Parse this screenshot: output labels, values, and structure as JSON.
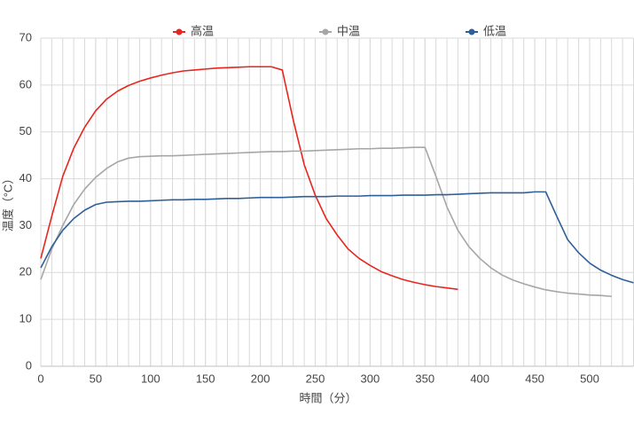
{
  "chart_data": {
    "type": "line",
    "x_label": "時間（分）",
    "y_label": "温度（°C）",
    "x": [
      0,
      10,
      20,
      30,
      40,
      50,
      60,
      70,
      80,
      90,
      100,
      110,
      120,
      130,
      140,
      150,
      160,
      170,
      180,
      190,
      200,
      210,
      220,
      230,
      240,
      250,
      260,
      270,
      280,
      290,
      300,
      310,
      320,
      330,
      340,
      350,
      360,
      370,
      380,
      390,
      400,
      410,
      420,
      430,
      440,
      450,
      460,
      470,
      480,
      490,
      500,
      510,
      520,
      530,
      540
    ],
    "series": [
      {
        "name": "高温",
        "color": "#e8261f",
        "values": [
          23,
          32,
          40.5,
          46.5,
          51,
          54.5,
          57,
          58.7,
          59.9,
          60.8,
          61.5,
          62.1,
          62.6,
          63,
          63.2,
          63.4,
          63.6,
          63.7,
          63.8,
          63.9,
          63.9,
          63.9,
          63.2,
          52.5,
          43,
          36.5,
          31.5,
          28,
          25,
          23,
          21.5,
          20.2,
          19.3,
          18.5,
          17.9,
          17.4,
          17,
          16.7,
          16.4,
          null,
          null,
          null,
          null,
          null,
          null,
          null,
          null,
          null,
          null,
          null,
          null,
          null,
          null,
          null,
          null
        ]
      },
      {
        "name": "中温",
        "color": "#a6a6a6",
        "values": [
          18.5,
          25,
          30,
          34.5,
          37.8,
          40.3,
          42.2,
          43.6,
          44.4,
          44.7,
          44.8,
          44.9,
          44.9,
          45,
          45.1,
          45.2,
          45.3,
          45.4,
          45.5,
          45.6,
          45.7,
          45.8,
          45.8,
          45.9,
          45.9,
          46,
          46.1,
          46.2,
          46.3,
          46.4,
          46.4,
          46.5,
          46.5,
          46.6,
          46.7,
          46.7,
          40.5,
          34,
          29,
          25.5,
          23,
          21,
          19.5,
          18.4,
          17.6,
          16.9,
          16.3,
          15.9,
          15.6,
          15.4,
          15.2,
          15.1,
          14.9,
          null,
          null
        ]
      },
      {
        "name": "低温",
        "color": "#2f5f98",
        "values": [
          21,
          25.5,
          29,
          31.5,
          33.3,
          34.5,
          35,
          35.1,
          35.2,
          35.2,
          35.3,
          35.4,
          35.5,
          35.5,
          35.6,
          35.6,
          35.7,
          35.8,
          35.8,
          35.9,
          36,
          36,
          36,
          36.1,
          36.2,
          36.2,
          36.2,
          36.3,
          36.3,
          36.3,
          36.4,
          36.4,
          36.4,
          36.5,
          36.5,
          36.5,
          36.6,
          36.6,
          36.7,
          36.8,
          36.9,
          37,
          37,
          37,
          37,
          37.2,
          37.2,
          32,
          27,
          24.2,
          22,
          20.5,
          19.4,
          18.5,
          17.8
        ]
      }
    ],
    "xlim": [
      0,
      540
    ],
    "xticks": [
      0,
      50,
      100,
      150,
      200,
      250,
      300,
      350,
      400,
      450,
      500
    ],
    "ylim": [
      0,
      70
    ],
    "yticks": [
      0,
      10,
      20,
      30,
      40,
      50,
      60,
      70
    ],
    "x_minor_grid_step": 10,
    "grid": true,
    "legend": "top"
  }
}
